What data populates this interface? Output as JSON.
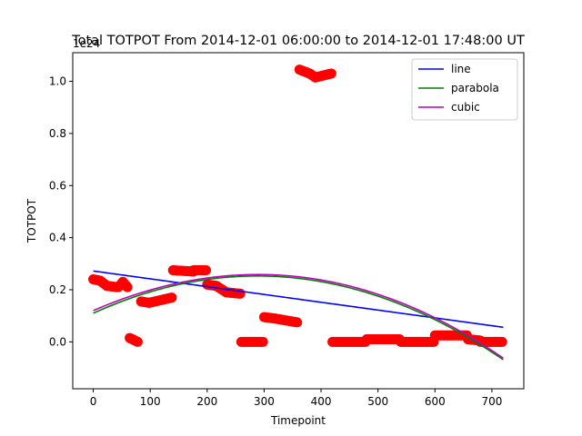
{
  "chart_data": {
    "type": "scatter",
    "title": "Total TOTPOT From 2014-12-01 06:00:00 to 2014-12-01 17:48:00 UT",
    "xlabel": "Timepoint",
    "ylabel": "TOTPOT",
    "offset_label": "1e24",
    "xlim": [
      -36,
      756
    ],
    "ylim": [
      -0.18,
      1.11
    ],
    "xticks": [
      0,
      100,
      200,
      300,
      400,
      500,
      600,
      700
    ],
    "yticks": [
      0.0,
      0.2,
      0.4,
      0.6,
      0.8,
      1.0
    ],
    "xtick_labels": [
      "0",
      "100",
      "200",
      "300",
      "400",
      "500",
      "600",
      "700"
    ],
    "ytick_labels": [
      "0.0",
      "0.2",
      "0.4",
      "0.6",
      "0.8",
      "1.0"
    ],
    "legend_position": "top-right",
    "grid": false,
    "scatter": {
      "color": "#ff0000",
      "segments": [
        {
          "x0": 0,
          "x1": 12,
          "y0": 0.24,
          "y1": 0.235
        },
        {
          "x0": 12,
          "x1": 24,
          "y0": 0.235,
          "y1": 0.215
        },
        {
          "x0": 24,
          "x1": 42,
          "y0": 0.215,
          "y1": 0.21
        },
        {
          "x0": 44,
          "x1": 52,
          "y0": 0.21,
          "y1": 0.23
        },
        {
          "x0": 52,
          "x1": 60,
          "y0": 0.23,
          "y1": 0.21
        },
        {
          "x0": 64,
          "x1": 78,
          "y0": 0.015,
          "y1": 0.0
        },
        {
          "x0": 84,
          "x1": 98,
          "y0": 0.155,
          "y1": 0.15
        },
        {
          "x0": 98,
          "x1": 138,
          "y0": 0.15,
          "y1": 0.17
        },
        {
          "x0": 140,
          "x1": 176,
          "y0": 0.275,
          "y1": 0.27
        },
        {
          "x0": 176,
          "x1": 198,
          "y0": 0.275,
          "y1": 0.275
        },
        {
          "x0": 200,
          "x1": 216,
          "y0": 0.22,
          "y1": 0.215
        },
        {
          "x0": 216,
          "x1": 234,
          "y0": 0.215,
          "y1": 0.19
        },
        {
          "x0": 234,
          "x1": 258,
          "y0": 0.19,
          "y1": 0.185
        },
        {
          "x0": 260,
          "x1": 298,
          "y0": 0.0,
          "y1": 0.0
        },
        {
          "x0": 300,
          "x1": 318,
          "y0": 0.095,
          "y1": 0.09
        },
        {
          "x0": 318,
          "x1": 358,
          "y0": 0.09,
          "y1": 0.075
        },
        {
          "x0": 362,
          "x1": 380,
          "y0": 1.045,
          "y1": 1.03
        },
        {
          "x0": 380,
          "x1": 390,
          "y0": 1.03,
          "y1": 1.015
        },
        {
          "x0": 390,
          "x1": 418,
          "y0": 1.015,
          "y1": 1.03
        },
        {
          "x0": 420,
          "x1": 478,
          "y0": 0.0,
          "y1": 0.0
        },
        {
          "x0": 480,
          "x1": 538,
          "y0": 0.01,
          "y1": 0.01
        },
        {
          "x0": 540,
          "x1": 598,
          "y0": 0.0,
          "y1": 0.0
        },
        {
          "x0": 600,
          "x1": 656,
          "y0": 0.025,
          "y1": 0.025
        },
        {
          "x0": 658,
          "x1": 680,
          "y0": 0.01,
          "y1": 0.005
        },
        {
          "x0": 680,
          "x1": 718,
          "y0": 0.0,
          "y1": 0.0
        }
      ]
    },
    "series": [
      {
        "name": "line",
        "color": "#0000ff",
        "kind": "poly",
        "coeffs": [
          0.272,
          -0.0003
        ],
        "x": [
          0,
          720
        ]
      },
      {
        "name": "parabola",
        "color": "#008000",
        "kind": "poly",
        "coeffs": [
          0.11,
          0.000992,
          -1.722e-06
        ],
        "x": [
          0,
          720
        ]
      },
      {
        "name": "cubic",
        "color": "#bf00bf",
        "kind": "poly",
        "coeffs": [
          0.12,
          0.00095,
          -1.6e-06,
          -1e-10
        ],
        "x": [
          0,
          720
        ]
      }
    ]
  }
}
